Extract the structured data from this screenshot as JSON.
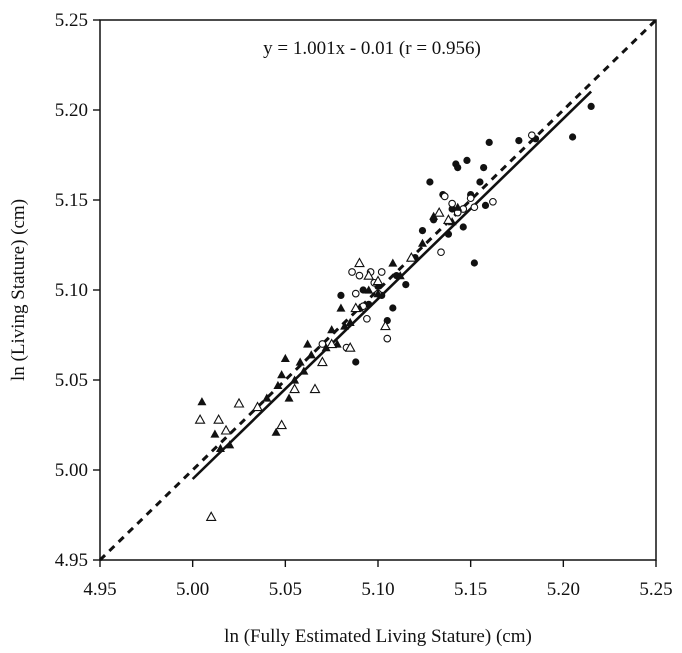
{
  "chart_data": {
    "type": "scatter",
    "title": "",
    "annotation": "y = 1.001x - 0.01 (r = 0.956)",
    "xlabel": "ln (Fully Estimated Living Stature) (cm)",
    "ylabel": "ln (Living Stature) (cm)",
    "xlim": [
      4.95,
      5.25
    ],
    "ylim": [
      4.95,
      5.25
    ],
    "x_ticks": [
      "4.95",
      "5.00",
      "5.05",
      "5.10",
      "5.15",
      "5.20",
      "5.25"
    ],
    "y_ticks": [
      "4.95",
      "5.00",
      "5.05",
      "5.10",
      "5.15",
      "5.20",
      "5.25"
    ],
    "grid": false,
    "legend": null,
    "colors": {
      "ink": "#111111",
      "background": "#ffffff"
    },
    "lines": [
      {
        "name": "identity-line",
        "style": "dashed",
        "x": [
          4.95,
          5.25
        ],
        "y": [
          4.95,
          5.25
        ]
      },
      {
        "name": "regression-line",
        "style": "solid",
        "slope": 1.001,
        "intercept": -0.01,
        "x": [
          5.0,
          5.215
        ]
      }
    ],
    "series": [
      {
        "name": "filled-circle",
        "marker": "circle-filled",
        "points": [
          [
            5.08,
            5.097
          ],
          [
            5.088,
            5.06
          ],
          [
            5.092,
            5.1
          ],
          [
            5.095,
            5.092
          ],
          [
            5.1,
            5.102
          ],
          [
            5.102,
            5.097
          ],
          [
            5.105,
            5.083
          ],
          [
            5.108,
            5.09
          ],
          [
            5.11,
            5.108
          ],
          [
            5.115,
            5.103
          ],
          [
            5.12,
            5.118
          ],
          [
            5.124,
            5.133
          ],
          [
            5.128,
            5.16
          ],
          [
            5.13,
            5.139
          ],
          [
            5.135,
            5.153
          ],
          [
            5.138,
            5.131
          ],
          [
            5.14,
            5.145
          ],
          [
            5.142,
            5.17
          ],
          [
            5.143,
            5.168
          ],
          [
            5.146,
            5.135
          ],
          [
            5.148,
            5.172
          ],
          [
            5.15,
            5.153
          ],
          [
            5.152,
            5.115
          ],
          [
            5.155,
            5.16
          ],
          [
            5.157,
            5.168
          ],
          [
            5.158,
            5.147
          ],
          [
            5.16,
            5.182
          ],
          [
            5.176,
            5.183
          ],
          [
            5.185,
            5.184
          ],
          [
            5.205,
            5.185
          ],
          [
            5.215,
            5.202
          ]
        ]
      },
      {
        "name": "open-circle",
        "marker": "circle-open",
        "points": [
          [
            5.07,
            5.07
          ],
          [
            5.083,
            5.068
          ],
          [
            5.086,
            5.11
          ],
          [
            5.088,
            5.098
          ],
          [
            5.09,
            5.108
          ],
          [
            5.092,
            5.091
          ],
          [
            5.094,
            5.084
          ],
          [
            5.096,
            5.11
          ],
          [
            5.098,
            5.104
          ],
          [
            5.1,
            5.098
          ],
          [
            5.102,
            5.11
          ],
          [
            5.105,
            5.073
          ],
          [
            5.134,
            5.121
          ],
          [
            5.136,
            5.152
          ],
          [
            5.14,
            5.148
          ],
          [
            5.143,
            5.143
          ],
          [
            5.146,
            5.145
          ],
          [
            5.15,
            5.151
          ],
          [
            5.152,
            5.146
          ],
          [
            5.162,
            5.149
          ],
          [
            5.183,
            5.186
          ]
        ]
      },
      {
        "name": "filled-triangle",
        "marker": "triangle-filled",
        "points": [
          [
            5.005,
            5.038
          ],
          [
            5.012,
            5.02
          ],
          [
            5.015,
            5.012
          ],
          [
            5.02,
            5.014
          ],
          [
            5.04,
            5.04
          ],
          [
            5.045,
            5.021
          ],
          [
            5.046,
            5.047
          ],
          [
            5.048,
            5.053
          ],
          [
            5.05,
            5.062
          ],
          [
            5.052,
            5.04
          ],
          [
            5.055,
            5.05
          ],
          [
            5.058,
            5.06
          ],
          [
            5.06,
            5.055
          ],
          [
            5.062,
            5.07
          ],
          [
            5.064,
            5.064
          ],
          [
            5.072,
            5.068
          ],
          [
            5.075,
            5.078
          ],
          [
            5.078,
            5.07
          ],
          [
            5.08,
            5.09
          ],
          [
            5.082,
            5.08
          ],
          [
            5.085,
            5.082
          ],
          [
            5.09,
            5.09
          ],
          [
            5.095,
            5.1
          ],
          [
            5.1,
            5.098
          ],
          [
            5.108,
            5.115
          ],
          [
            5.112,
            5.108
          ],
          [
            5.124,
            5.126
          ],
          [
            5.13,
            5.141
          ],
          [
            5.14,
            5.138
          ],
          [
            5.143,
            5.146
          ]
        ]
      },
      {
        "name": "open-triangle",
        "marker": "triangle-open",
        "points": [
          [
            5.004,
            5.028
          ],
          [
            5.01,
            4.974
          ],
          [
            5.014,
            5.028
          ],
          [
            5.018,
            5.022
          ],
          [
            5.025,
            5.037
          ],
          [
            5.035,
            5.035
          ],
          [
            5.048,
            5.025
          ],
          [
            5.055,
            5.045
          ],
          [
            5.066,
            5.045
          ],
          [
            5.07,
            5.06
          ],
          [
            5.075,
            5.07
          ],
          [
            5.085,
            5.068
          ],
          [
            5.088,
            5.09
          ],
          [
            5.09,
            5.115
          ],
          [
            5.095,
            5.108
          ],
          [
            5.1,
            5.105
          ],
          [
            5.104,
            5.08
          ],
          [
            5.118,
            5.118
          ],
          [
            5.133,
            5.143
          ],
          [
            5.138,
            5.139
          ]
        ]
      }
    ]
  }
}
